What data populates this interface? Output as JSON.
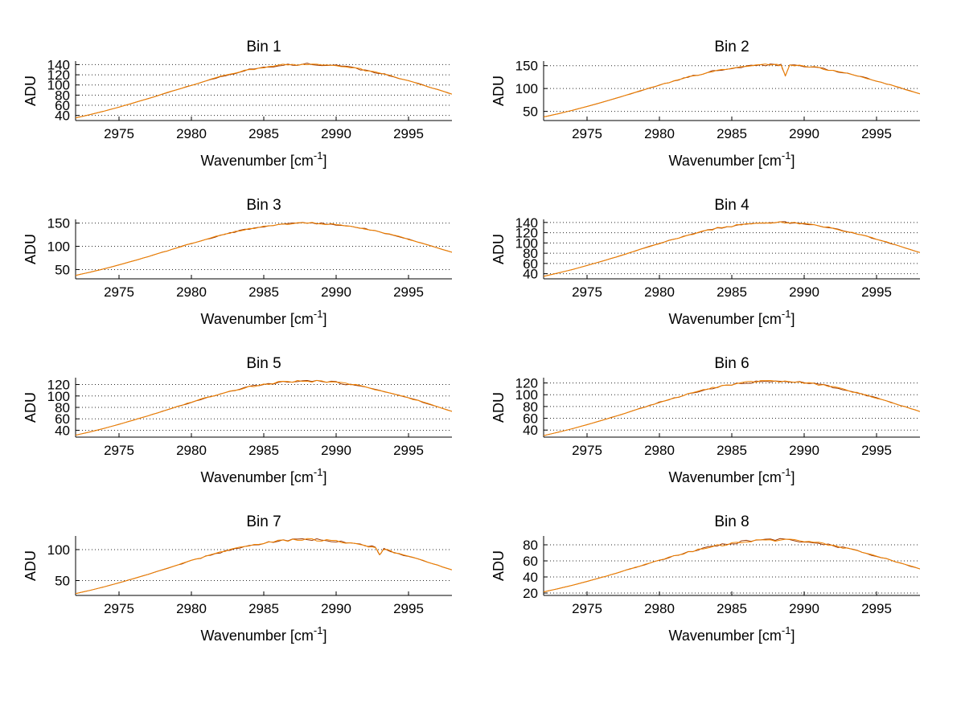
{
  "figure": {
    "background": "#ffffff",
    "rows": 4,
    "columns": 2
  },
  "axes": {
    "ylabel": "ADU",
    "xlabel_prefix": "Wavenumber [cm",
    "xlabel_sup": "-1",
    "xlabel_suffix": "]",
    "xlim": [
      2972,
      2998
    ],
    "xticks": [
      2975,
      2980,
      2985,
      2990,
      2995
    ],
    "grid": "y-dotted",
    "axis_color": "#000000",
    "grid_color": "#2b2b2b",
    "text_color": "#000000"
  },
  "series_style": [
    {
      "name": "trace-dark",
      "color": "#9e3a00"
    },
    {
      "name": "trace-main",
      "color": "#f08200"
    }
  ],
  "x_default": [
    2972,
    2973,
    2974,
    2975,
    2976,
    2977,
    2978,
    2979,
    2980,
    2981,
    2982,
    2983,
    2984,
    2985,
    2986,
    2987,
    2988,
    2989,
    2990,
    2991,
    2992,
    2993,
    2994,
    2995,
    2996,
    2997,
    2998
  ],
  "chart_data": [
    {
      "type": "line",
      "title": "Bin 1",
      "yticks": [
        40,
        60,
        80,
        100,
        120,
        140
      ],
      "ylim": [
        30,
        147
      ],
      "noise": 2.0,
      "y": [
        35.1,
        41.6,
        48.7,
        56.4,
        64.6,
        73.0,
        81.9,
        90.8,
        99.7,
        108.1,
        116.1,
        123.1,
        130.1,
        133.6,
        138.6,
        139.8,
        141.3,
        140.0,
        138.3,
        134.6,
        128.9,
        123.5,
        116.1,
        108.1,
        99.7,
        90.8,
        81.9
      ]
    },
    {
      "type": "line",
      "title": "Bin 2",
      "yticks": [
        50,
        100,
        150
      ],
      "ylim": [
        30,
        160
      ],
      "noise": 2.2,
      "x": [
        2972,
        2973,
        2974,
        2975,
        2976,
        2977,
        2978,
        2979,
        2980,
        2981,
        2982,
        2983,
        2984,
        2985,
        2986,
        2987,
        2988,
        2988.4,
        2988.7,
        2989,
        2990,
        2991,
        2992,
        2993,
        2994,
        2995,
        2996,
        2997,
        2998
      ],
      "y": [
        37.8,
        44.8,
        52.4,
        60.8,
        69.6,
        78.7,
        88.3,
        97.9,
        107.5,
        116.5,
        125.1,
        132.7,
        139.9,
        144.4,
        149.1,
        151.0,
        152.2,
        151.4,
        128.5,
        150.7,
        148.8,
        144.7,
        139.4,
        132.7,
        125.1,
        116.5,
        107.5,
        97.9,
        88.3
      ]
    },
    {
      "type": "line",
      "title": "Bin 3",
      "yticks": [
        50,
        100,
        150
      ],
      "ylim": [
        30,
        158
      ],
      "noise": 1.8,
      "y": [
        37.4,
        44.3,
        51.8,
        60.0,
        68.7,
        77.7,
        87.2,
        96.6,
        106.1,
        115.0,
        123.5,
        131.0,
        137.9,
        142.4,
        147.2,
        148.9,
        150.3,
        149.0,
        146.9,
        143.1,
        137.6,
        131.0,
        123.5,
        115.0,
        106.1,
        96.6,
        87.2
      ]
    },
    {
      "type": "line",
      "title": "Bin 4",
      "yticks": [
        40,
        60,
        80,
        100,
        120,
        140
      ],
      "ylim": [
        30,
        146
      ],
      "noise": 2.0,
      "y": [
        34.9,
        41.3,
        48.3,
        56.0,
        64.1,
        72.5,
        81.3,
        90.2,
        99.0,
        107.3,
        115.2,
        122.2,
        128.8,
        133.0,
        137.4,
        139.0,
        140.2,
        139.6,
        136.8,
        133.3,
        128.4,
        122.2,
        115.2,
        107.3,
        99.0,
        90.2,
        81.3
      ]
    },
    {
      "type": "line",
      "title": "Bin 5",
      "yticks": [
        40,
        60,
        80,
        100,
        120
      ],
      "ylim": [
        28,
        132
      ],
      "noise": 2.0,
      "y": [
        31.4,
        37.2,
        43.5,
        50.4,
        57.7,
        65.3,
        73.2,
        81.1,
        89.2,
        96.6,
        103.7,
        110.0,
        115.9,
        119.6,
        123.7,
        125.0,
        126.3,
        125.1,
        123.4,
        120.2,
        115.5,
        110.0,
        103.7,
        96.6,
        89.2,
        81.1,
        73.2
      ]
    },
    {
      "type": "line",
      "title": "Bin 6",
      "yticks": [
        40,
        60,
        80,
        100,
        120
      ],
      "ylim": [
        28,
        129
      ],
      "noise": 2.0,
      "y": [
        30.6,
        36.3,
        42.4,
        49.2,
        56.3,
        63.7,
        71.5,
        79.2,
        87.0,
        94.3,
        101.2,
        107.4,
        113.1,
        116.8,
        120.7,
        122.2,
        123.2,
        122.5,
        120.4,
        117.3,
        112.8,
        107.4,
        101.2,
        94.3,
        87.0,
        79.2,
        71.5
      ]
    },
    {
      "type": "line",
      "title": "Bin 7",
      "yticks": [
        50,
        100
      ],
      "ylim": [
        26,
        122
      ],
      "noise": 2.0,
      "x": [
        2972,
        2973,
        2974,
        2975,
        2976,
        2977,
        2978,
        2979,
        2980,
        2981,
        2982,
        2983,
        2984,
        2985,
        2986,
        2987,
        2988,
        2989,
        2990,
        2991,
        2992,
        2992.7,
        2993,
        2993.3,
        2994,
        2995,
        2996,
        2997,
        2998
      ],
      "y": [
        28.9,
        34.2,
        40.0,
        46.4,
        53.1,
        60.1,
        67.4,
        74.7,
        82.1,
        89.0,
        95.5,
        101.3,
        106.7,
        110.2,
        113.9,
        115.2,
        116.2,
        115.5,
        113.6,
        110.4,
        106.4,
        103.8,
        91.5,
        101.2,
        95.5,
        89.0,
        82.1,
        74.7,
        67.4
      ]
    },
    {
      "type": "line",
      "title": "Bin 8",
      "yticks": [
        20,
        40,
        60,
        80
      ],
      "ylim": [
        17,
        91
      ],
      "noise": 1.8,
      "y": [
        21.4,
        25.4,
        29.7,
        34.4,
        39.4,
        44.5,
        50.0,
        55.4,
        60.8,
        65.9,
        70.8,
        75.1,
        79.2,
        81.6,
        84.5,
        85.4,
        86.2,
        85.7,
        84.2,
        82.1,
        78.9,
        75.1,
        70.8,
        65.9,
        60.8,
        55.4,
        50.0
      ]
    }
  ]
}
